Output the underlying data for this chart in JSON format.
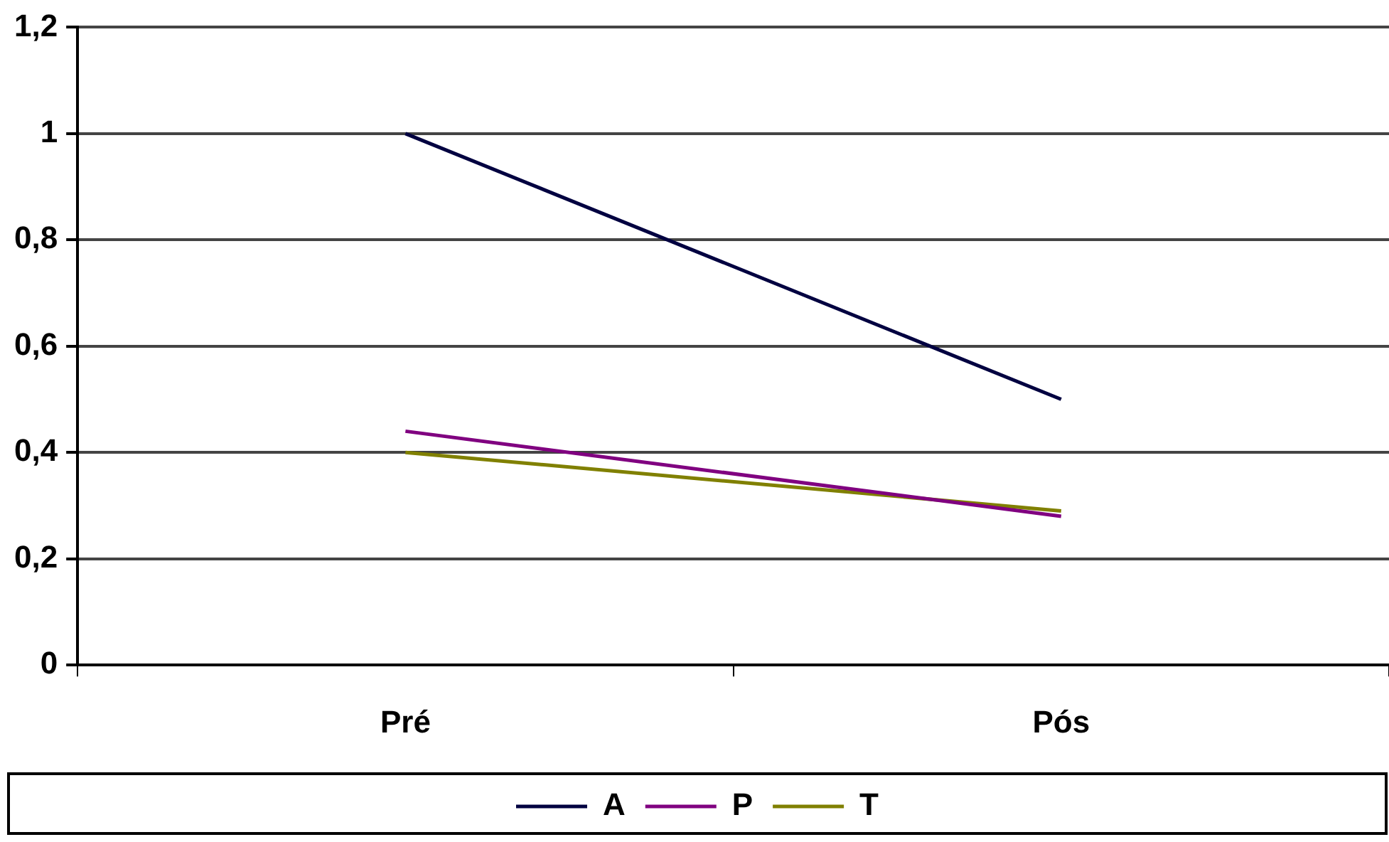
{
  "chart_data": {
    "type": "line",
    "categories": [
      "Pré",
      "Pós"
    ],
    "series": [
      {
        "name": "A",
        "color": "#000040",
        "values": [
          1,
          0.5
        ]
      },
      {
        "name": "P",
        "color": "#800080",
        "values": [
          0.44,
          0.28
        ]
      },
      {
        "name": "T",
        "color": "#808000",
        "values": [
          0.4,
          0.29
        ]
      }
    ],
    "ylim": [
      0,
      1.2
    ],
    "yticks": [
      {
        "value": 0,
        "label": "0"
      },
      {
        "value": 0.2,
        "label": "0,2"
      },
      {
        "value": 0.4,
        "label": "0,4"
      },
      {
        "value": 0.6,
        "label": "0,6"
      },
      {
        "value": 0.8,
        "label": "0,8"
      },
      {
        "value": 1,
        "label": "1"
      },
      {
        "value": 1.2,
        "label": "1,2"
      }
    ],
    "grid": "y",
    "legend": "bottom",
    "marker": "none",
    "line_style": "solid"
  }
}
